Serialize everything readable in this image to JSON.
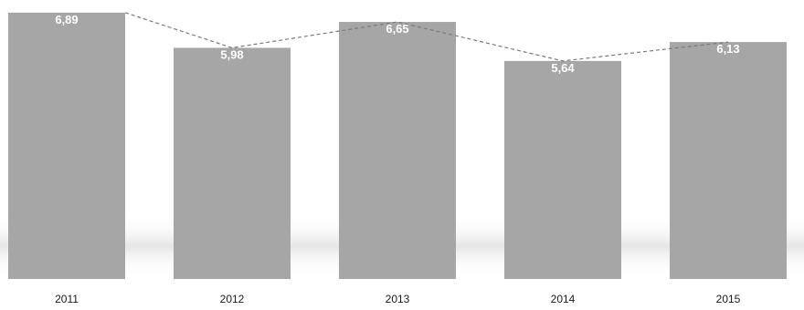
{
  "chart_data": {
    "type": "bar",
    "title": "",
    "xlabel": "",
    "ylabel": "",
    "categories": [
      "2011",
      "2012",
      "2013",
      "2014",
      "2015"
    ],
    "values": [
      6.89,
      5.98,
      6.65,
      5.64,
      6.13
    ],
    "value_labels": [
      "6,89",
      "5,98",
      "6,65",
      "5,64",
      "6,13"
    ],
    "ylim": [
      0,
      7
    ],
    "grid": false,
    "legend": "none",
    "bar_color": "#a6a6a6",
    "label_color": "#ffffff",
    "trend_line": "dashed"
  }
}
